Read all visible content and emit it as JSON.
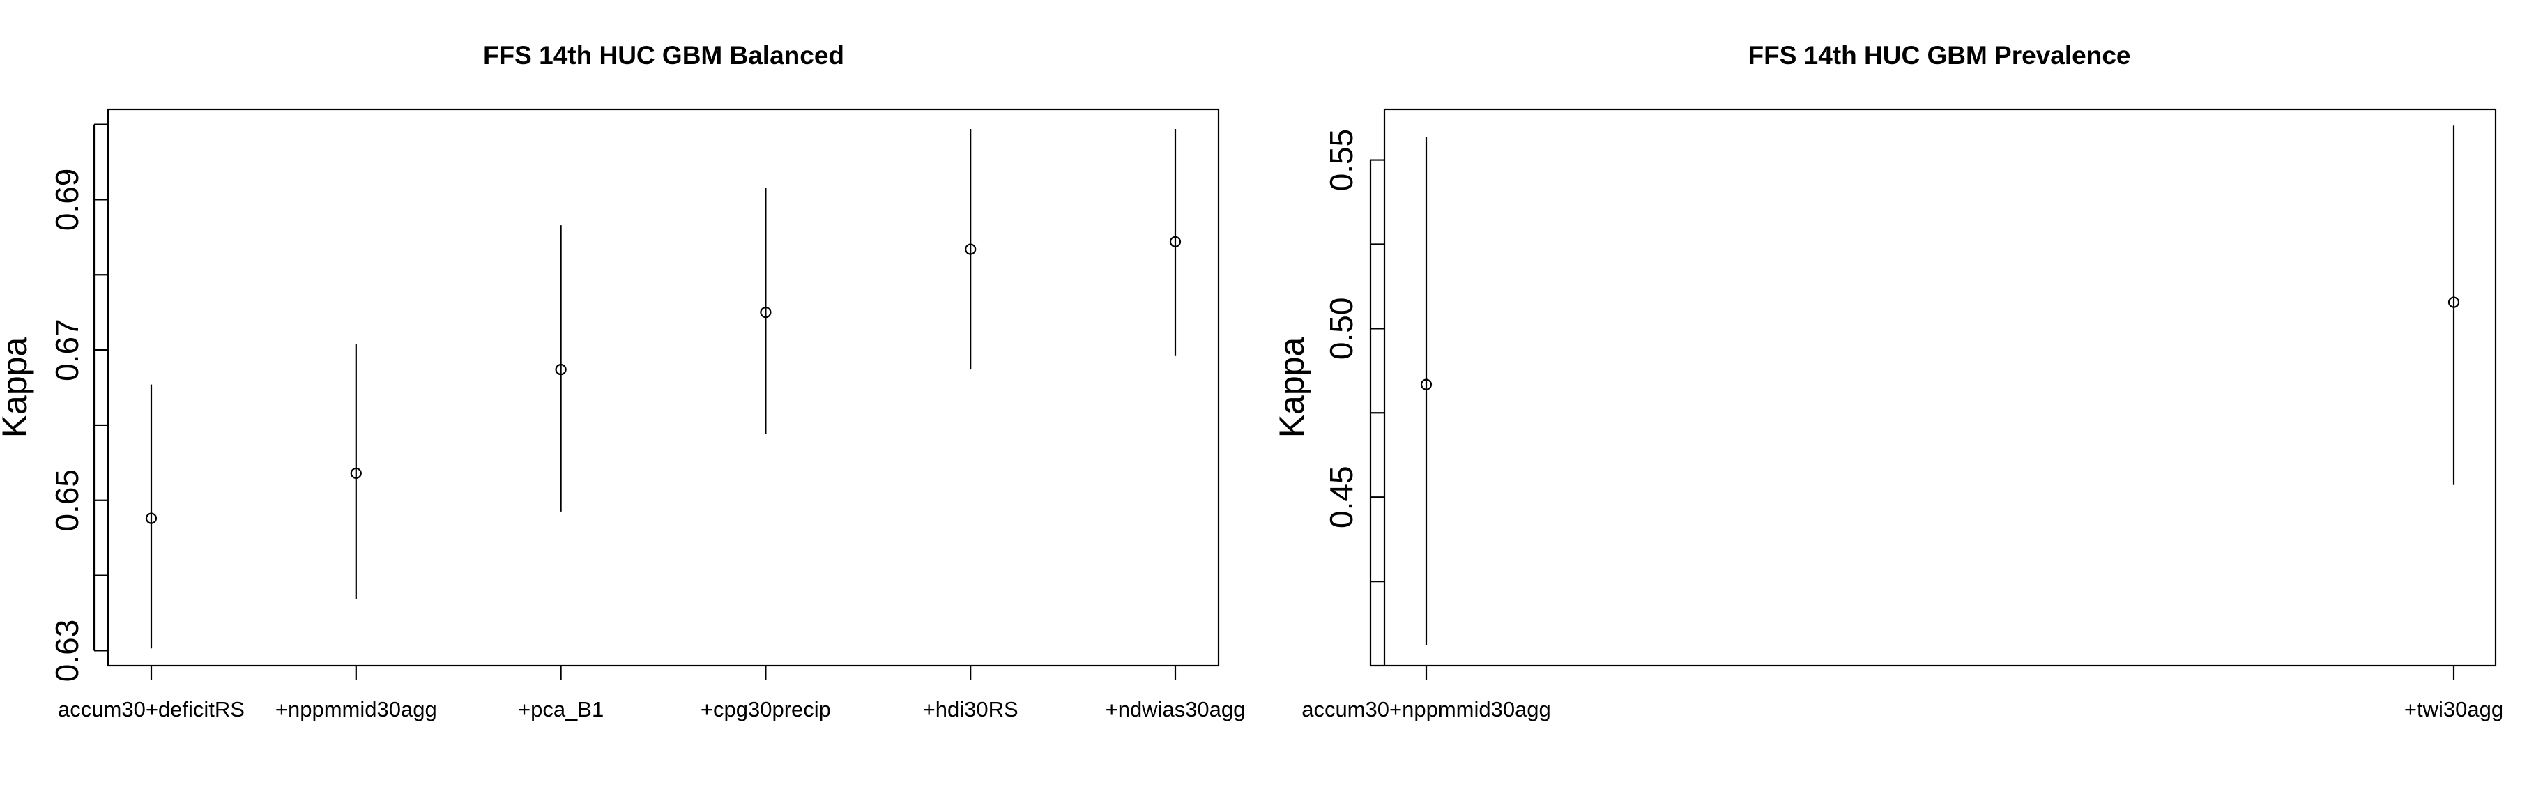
{
  "chart_data": [
    {
      "type": "scatter",
      "title": "FFS 14th HUC GBM Balanced",
      "xlabel": "",
      "ylabel": "Kappa",
      "categories": [
        "accum30+deficitRS",
        "+nppmmid30agg",
        "+pca_B1",
        "+cpg30precip",
        "+hdi30RS",
        "+ndwias30agg"
      ],
      "values": [
        0.6476,
        0.6536,
        0.6674,
        0.675,
        0.6834,
        0.6844
      ],
      "lower": [
        0.6303,
        0.6369,
        0.6485,
        0.6588,
        0.6674,
        0.6692
      ],
      "upper": [
        0.6654,
        0.6708,
        0.6866,
        0.6916,
        0.6994,
        0.6994
      ],
      "ylim": [
        0.628,
        0.702
      ],
      "yticks": [
        "0.63",
        "0.65",
        "0.67",
        "0.69"
      ],
      "grid": false
    },
    {
      "type": "scatter",
      "title": "FFS 14th HUC GBM Prevalence",
      "xlabel": "",
      "ylabel": "Kappa",
      "categories": [
        "accum30+nppmmid30agg",
        "+twi30agg"
      ],
      "values": [
        0.4834,
        0.5078
      ],
      "lower": [
        0.406,
        0.4536
      ],
      "upper": [
        0.5568,
        0.5602
      ],
      "ylim": [
        0.4,
        0.565
      ],
      "yticks": [
        "0.45",
        "0.50",
        "0.55"
      ],
      "grid": false
    }
  ]
}
